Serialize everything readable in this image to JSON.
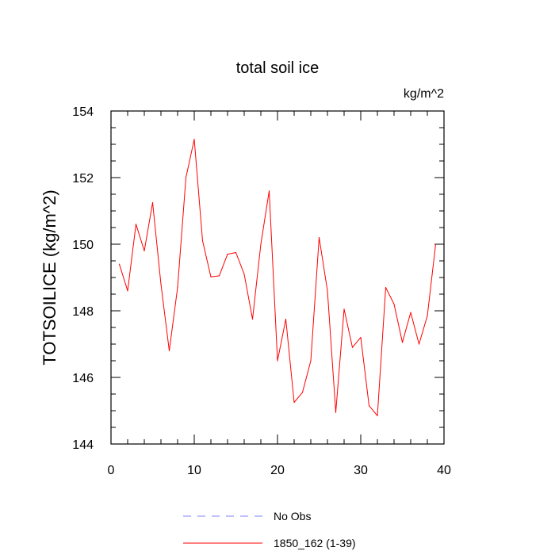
{
  "chart_data": {
    "type": "line",
    "title": "total soil ice",
    "units": "kg/m^2",
    "xlabel": "",
    "ylabel": "TOTSOILICE  (kg/m^2)",
    "xlim": [
      0,
      40
    ],
    "ylim": [
      144,
      154
    ],
    "x_ticks": [
      0,
      10,
      20,
      30,
      40
    ],
    "y_ticks": [
      144,
      146,
      148,
      150,
      152,
      154
    ],
    "grid": false,
    "legend_position": "bottom",
    "series": [
      {
        "name": "1850_162 (1-39)",
        "color": "#ff0000",
        "style": "solid",
        "x": [
          1,
          2,
          3,
          4,
          5,
          6,
          7,
          8,
          9,
          10,
          11,
          12,
          13,
          14,
          15,
          16,
          17,
          18,
          19,
          20,
          21,
          22,
          23,
          24,
          25,
          26,
          27,
          28,
          29,
          30,
          31,
          32,
          33,
          34,
          35,
          36,
          37,
          38,
          39
        ],
        "y": [
          149.4,
          148.6,
          150.6,
          149.8,
          151.25,
          148.8,
          146.8,
          148.7,
          152.0,
          153.15,
          150.1,
          149.02,
          149.05,
          149.7,
          149.75,
          149.1,
          147.75,
          150.0,
          151.6,
          146.5,
          147.75,
          145.25,
          145.55,
          146.5,
          150.2,
          148.6,
          144.95,
          148.05,
          146.9,
          147.2,
          145.15,
          144.85,
          148.7,
          148.2,
          147.05,
          147.95,
          147.0,
          147.85,
          150.0
        ]
      },
      {
        "name": "No Obs",
        "color": "#8080ff",
        "style": "dashed",
        "x": [],
        "y": []
      }
    ]
  }
}
